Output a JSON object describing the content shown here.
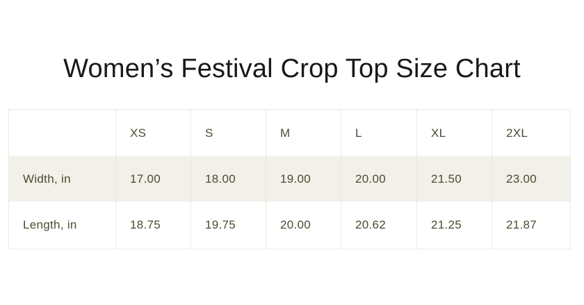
{
  "page": {
    "title": "Women’s Festival Crop Top Size Chart"
  },
  "size_chart": {
    "columns": [
      "",
      "XS",
      "S",
      "M",
      "L",
      "XL",
      "2XL"
    ],
    "rows": [
      {
        "label": "Width, in",
        "values": [
          "17.00",
          "18.00",
          "19.00",
          "20.00",
          "21.50",
          "23.00"
        ]
      },
      {
        "label": "Length, in",
        "values": [
          "18.75",
          "19.75",
          "20.00",
          "20.62",
          "21.25",
          "21.87"
        ]
      }
    ]
  },
  "chart_data": {
    "type": "table",
    "title": "Women’s Festival Crop Top Size Chart",
    "columns": [
      "XS",
      "S",
      "M",
      "L",
      "XL",
      "2XL"
    ],
    "rows": [
      {
        "label": "Width, in",
        "values": [
          17.0,
          18.0,
          19.0,
          20.0,
          21.5,
          23.0
        ]
      },
      {
        "label": "Length, in",
        "values": [
          18.75,
          19.75,
          20.0,
          20.62,
          21.25,
          21.87
        ]
      }
    ],
    "units": "inches"
  },
  "colors": {
    "page_bg": "#ffffff",
    "title_text": "#181818",
    "table_text": "#4b4c31",
    "row_band_bg": "#f1f0e9",
    "table_border": "#ebe9df"
  }
}
